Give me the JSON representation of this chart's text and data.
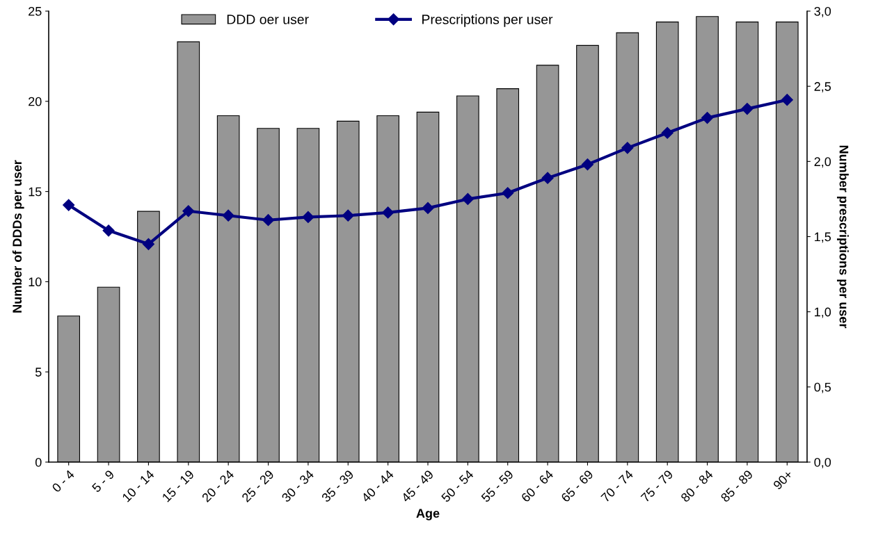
{
  "chart_data": {
    "type": "bar",
    "xlabel": "Age",
    "ylabel": "Number of DDDs per user",
    "y2label": "Number prescriptions per user",
    "categories": [
      "0 - 4",
      "5 - 9",
      "10 - 14",
      "15 - 19",
      "20 - 24",
      "25 - 29",
      "30 - 34",
      "35 - 39",
      "40 - 44",
      "45 - 49",
      "50 - 54",
      "55 - 59",
      "60 - 64",
      "65 - 69",
      "70 - 74",
      "75 - 79",
      "80 - 84",
      "85 - 89",
      "90+"
    ],
    "series": [
      {
        "name": "DDD oer user",
        "color": "#969696",
        "values": [
          8.1,
          9.7,
          13.9,
          23.3,
          19.2,
          18.5,
          18.5,
          18.9,
          19.2,
          19.4,
          20.3,
          20.7,
          22.0,
          23.1,
          23.8,
          24.4,
          24.7,
          24.4,
          24.4
        ]
      },
      {
        "name": "Prescriptions per user",
        "type": "line",
        "axis": "y2",
        "color": "#000080",
        "marker": "diamond",
        "values": [
          1.71,
          1.54,
          1.45,
          1.67,
          1.64,
          1.61,
          1.63,
          1.64,
          1.66,
          1.69,
          1.75,
          1.79,
          1.89,
          1.98,
          2.09,
          2.19,
          2.29,
          2.35,
          2.41
        ]
      }
    ],
    "ylim": [
      0,
      25
    ],
    "yticks": [
      0,
      5,
      10,
      15,
      20,
      25
    ],
    "y2lim": [
      0,
      3
    ],
    "y2ticks": [
      {
        "value": 0,
        "label": "0,0"
      },
      {
        "value": 0.5,
        "label": "0,5"
      },
      {
        "value": 1,
        "label": "1,0"
      },
      {
        "value": 1.5,
        "label": "1,5"
      },
      {
        "value": 2,
        "label": "2,0"
      },
      {
        "value": 2.5,
        "label": "2,5"
      },
      {
        "value": 3,
        "label": "3,0"
      }
    ],
    "grid": false,
    "legend": "top"
  }
}
